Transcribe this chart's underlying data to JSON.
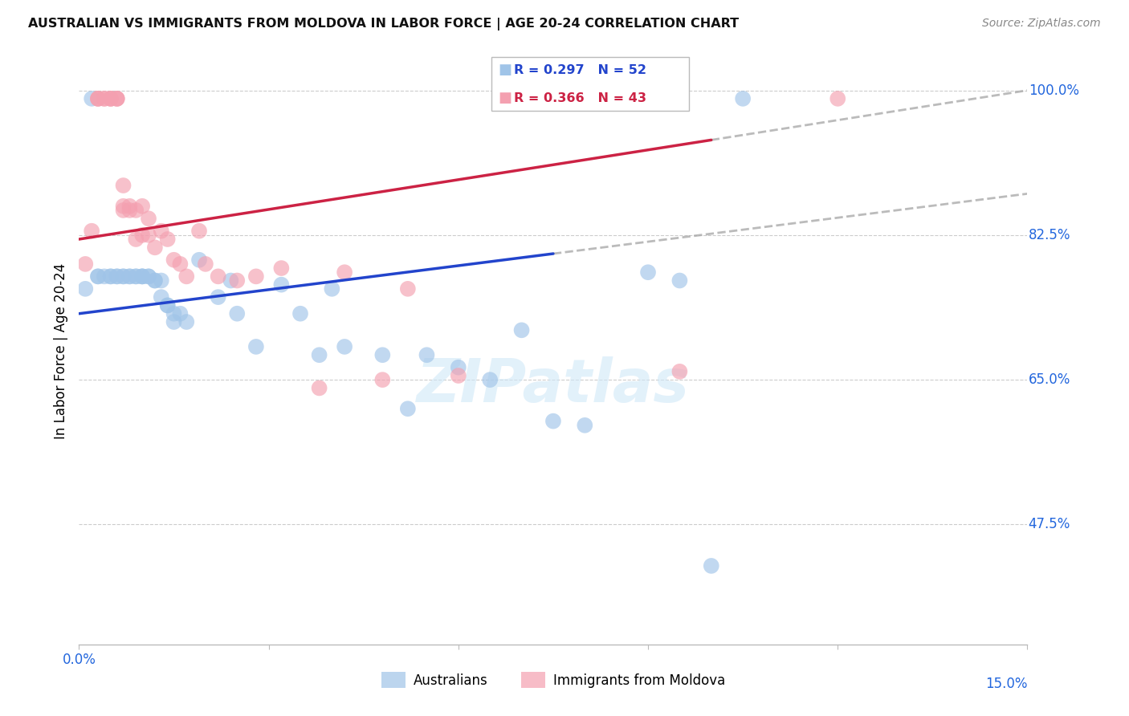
{
  "title": "AUSTRALIAN VS IMMIGRANTS FROM MOLDOVA IN LABOR FORCE | AGE 20-24 CORRELATION CHART",
  "source": "Source: ZipAtlas.com",
  "ylabel": "In Labor Force | Age 20-24",
  "R_blue": 0.297,
  "N_blue": 52,
  "R_pink": 0.366,
  "N_pink": 43,
  "blue_color": "#a0c4e8",
  "pink_color": "#f4a0b0",
  "blue_line_color": "#2244cc",
  "pink_line_color": "#cc2244",
  "legend_label_blue": "Australians",
  "legend_label_pink": "Immigrants from Moldova",
  "xmin": 0.0,
  "xmax": 15.0,
  "ymin": 33.0,
  "ymax": 104.0,
  "ytick_vals": [
    47.5,
    65.0,
    82.5,
    100.0
  ],
  "ytick_labels": [
    "47.5%",
    "65.0%",
    "82.5%",
    "100.0%"
  ],
  "gridline_color": "#cccccc",
  "blue_scatter_x": [
    0.1,
    0.2,
    0.3,
    0.3,
    0.4,
    0.5,
    0.5,
    0.6,
    0.6,
    0.7,
    0.7,
    0.8,
    0.8,
    0.9,
    0.9,
    1.0,
    1.0,
    1.0,
    1.1,
    1.1,
    1.2,
    1.2,
    1.3,
    1.3,
    1.4,
    1.4,
    1.5,
    1.5,
    1.6,
    1.7,
    1.9,
    2.2,
    2.4,
    2.5,
    2.8,
    3.2,
    3.5,
    3.8,
    4.0,
    4.2,
    4.8,
    5.2,
    5.5,
    6.0,
    6.5,
    7.0,
    7.5,
    8.0,
    9.0,
    9.5,
    10.0,
    10.5
  ],
  "blue_scatter_y": [
    76.0,
    99.0,
    77.5,
    77.5,
    77.5,
    77.5,
    77.5,
    77.5,
    77.5,
    77.5,
    77.5,
    77.5,
    77.5,
    77.5,
    77.5,
    77.5,
    77.5,
    77.5,
    77.5,
    77.5,
    77.0,
    77.0,
    77.0,
    75.0,
    74.0,
    74.0,
    73.0,
    72.0,
    73.0,
    72.0,
    79.5,
    75.0,
    77.0,
    73.0,
    69.0,
    76.5,
    73.0,
    68.0,
    76.0,
    69.0,
    68.0,
    61.5,
    68.0,
    66.5,
    65.0,
    71.0,
    60.0,
    59.5,
    78.0,
    77.0,
    42.5,
    99.0
  ],
  "pink_scatter_x": [
    0.1,
    0.2,
    0.3,
    0.3,
    0.3,
    0.4,
    0.4,
    0.5,
    0.5,
    0.5,
    0.6,
    0.6,
    0.6,
    0.7,
    0.7,
    0.7,
    0.8,
    0.8,
    0.9,
    0.9,
    1.0,
    1.0,
    1.1,
    1.1,
    1.2,
    1.3,
    1.4,
    1.5,
    1.6,
    1.7,
    1.9,
    2.0,
    2.2,
    2.5,
    2.8,
    3.2,
    3.8,
    4.2,
    4.8,
    5.2,
    6.0,
    9.5,
    12.0
  ],
  "pink_scatter_y": [
    79.0,
    83.0,
    99.0,
    99.0,
    99.0,
    99.0,
    99.0,
    99.0,
    99.0,
    99.0,
    99.0,
    99.0,
    99.0,
    86.0,
    85.5,
    88.5,
    86.0,
    85.5,
    82.0,
    85.5,
    82.5,
    86.0,
    82.5,
    84.5,
    81.0,
    83.0,
    82.0,
    79.5,
    79.0,
    77.5,
    83.0,
    79.0,
    77.5,
    77.0,
    77.5,
    78.5,
    64.0,
    78.0,
    65.0,
    76.0,
    65.5,
    66.0,
    99.0
  ],
  "blue_line_x0": 0.0,
  "blue_line_x1": 15.0,
  "blue_line_y0": 73.0,
  "blue_line_y1": 87.5,
  "pink_line_x0": 0.0,
  "pink_line_x1": 15.0,
  "pink_line_y0": 82.0,
  "pink_line_y1": 100.0,
  "blue_solid_x1": 7.5,
  "pink_solid_x1": 10.0,
  "dash_color": "#aaaaaa"
}
